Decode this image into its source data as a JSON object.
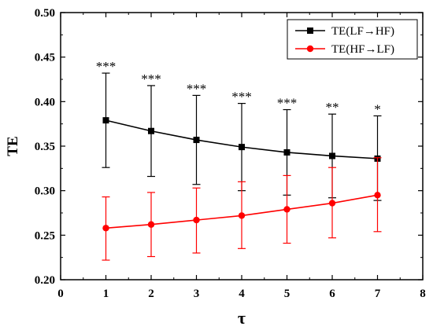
{
  "chart_data": {
    "type": "line",
    "xlabel": "τ",
    "ylabel": "TE",
    "xlim": [
      0,
      8
    ],
    "ylim": [
      0.2,
      0.5
    ],
    "xticks": [
      "0",
      "1",
      "2",
      "3",
      "4",
      "5",
      "6",
      "7",
      "8"
    ],
    "yticks": [
      "0.20",
      "0.25",
      "0.30",
      "0.35",
      "0.40",
      "0.45",
      "0.50"
    ],
    "grid": false,
    "legend_position": "top-right",
    "x": [
      1,
      2,
      3,
      4,
      5,
      6,
      7
    ],
    "series": [
      {
        "name": "TE(LF→HF)",
        "color": "#000000",
        "marker": "square",
        "values": [
          0.379,
          0.367,
          0.357,
          0.349,
          0.343,
          0.339,
          0.336
        ],
        "err_upper": [
          0.432,
          0.418,
          0.407,
          0.398,
          0.391,
          0.386,
          0.384
        ],
        "err_lower": [
          0.326,
          0.316,
          0.307,
          0.3,
          0.295,
          0.292,
          0.289
        ]
      },
      {
        "name": "TE(HF→LF)",
        "color": "#ff0000",
        "marker": "circle",
        "values": [
          0.258,
          0.262,
          0.267,
          0.272,
          0.279,
          0.286,
          0.295
        ],
        "err_upper": [
          0.293,
          0.298,
          0.303,
          0.31,
          0.317,
          0.326,
          0.337
        ],
        "err_lower": [
          0.222,
          0.226,
          0.23,
          0.235,
          0.241,
          0.247,
          0.254
        ]
      }
    ],
    "annotations": [
      "***",
      "***",
      "***",
      "***",
      "***",
      "**",
      "*"
    ]
  }
}
